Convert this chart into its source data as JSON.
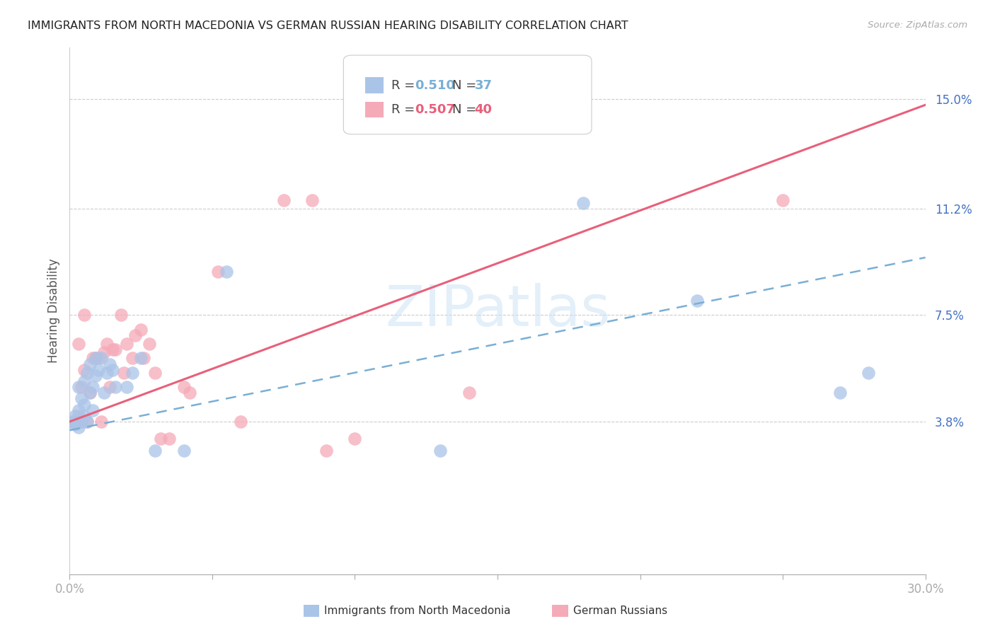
{
  "title": "IMMIGRANTS FROM NORTH MACEDONIA VS GERMAN RUSSIAN HEARING DISABILITY CORRELATION CHART",
  "source": "Source: ZipAtlas.com",
  "ylabel": "Hearing Disability",
  "xlim": [
    0.0,
    0.3
  ],
  "ylim": [
    -0.015,
    0.168
  ],
  "xtick_positions": [
    0.0,
    0.05,
    0.1,
    0.15,
    0.2,
    0.25,
    0.3
  ],
  "ytick_positions": [
    0.038,
    0.075,
    0.112,
    0.15
  ],
  "ytick_labels": [
    "3.8%",
    "7.5%",
    "11.2%",
    "15.0%"
  ],
  "series1_label": "Immigrants from North Macedonia",
  "series2_label": "German Russians",
  "color1": "#aac4e8",
  "color2": "#f5aab8",
  "trend1_color": "#7aafd4",
  "trend2_color": "#e8607a",
  "background_color": "#ffffff",
  "watermark": "ZIPatlas",
  "north_macedonia_x": [
    0.001,
    0.002,
    0.002,
    0.003,
    0.003,
    0.003,
    0.004,
    0.004,
    0.005,
    0.005,
    0.005,
    0.006,
    0.006,
    0.007,
    0.007,
    0.008,
    0.008,
    0.009,
    0.009,
    0.01,
    0.011,
    0.012,
    0.013,
    0.014,
    0.015,
    0.016,
    0.02,
    0.022,
    0.025,
    0.03,
    0.04,
    0.055,
    0.13,
    0.18,
    0.22,
    0.27,
    0.28
  ],
  "north_macedonia_y": [
    0.038,
    0.037,
    0.04,
    0.036,
    0.042,
    0.05,
    0.038,
    0.046,
    0.044,
    0.04,
    0.052,
    0.038,
    0.055,
    0.048,
    0.058,
    0.042,
    0.05,
    0.054,
    0.06,
    0.056,
    0.06,
    0.048,
    0.055,
    0.058,
    0.056,
    0.05,
    0.05,
    0.055,
    0.06,
    0.028,
    0.028,
    0.09,
    0.028,
    0.114,
    0.08,
    0.048,
    0.055
  ],
  "german_russian_x": [
    0.001,
    0.002,
    0.003,
    0.003,
    0.004,
    0.004,
    0.005,
    0.005,
    0.006,
    0.007,
    0.008,
    0.009,
    0.01,
    0.011,
    0.012,
    0.013,
    0.014,
    0.015,
    0.016,
    0.018,
    0.019,
    0.02,
    0.022,
    0.023,
    0.025,
    0.026,
    0.028,
    0.03,
    0.032,
    0.035,
    0.04,
    0.042,
    0.052,
    0.06,
    0.075,
    0.085,
    0.09,
    0.1,
    0.14,
    0.25
  ],
  "german_russian_y": [
    0.038,
    0.038,
    0.04,
    0.065,
    0.038,
    0.05,
    0.056,
    0.075,
    0.038,
    0.048,
    0.06,
    0.06,
    0.06,
    0.038,
    0.062,
    0.065,
    0.05,
    0.063,
    0.063,
    0.075,
    0.055,
    0.065,
    0.06,
    0.068,
    0.07,
    0.06,
    0.065,
    0.055,
    0.032,
    0.032,
    0.05,
    0.048,
    0.09,
    0.038,
    0.115,
    0.115,
    0.028,
    0.032,
    0.048,
    0.115
  ],
  "trend1_y_start": 0.035,
  "trend1_y_end": 0.095,
  "trend2_y_start": 0.038,
  "trend2_y_end": 0.148
}
